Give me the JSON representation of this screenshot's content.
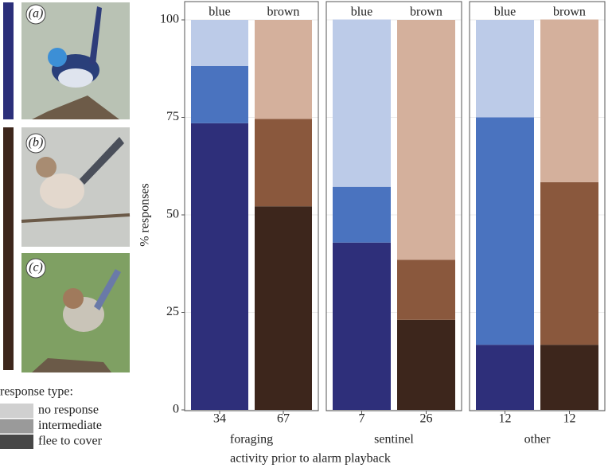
{
  "chart_data": {
    "type": "bar",
    "stacked": true,
    "ylabel": "% responses",
    "xlabel": "activity prior to alarm playback",
    "ylim": [
      0,
      100
    ],
    "yticks": [
      0,
      25,
      50,
      75,
      100
    ],
    "grid": true,
    "legend": {
      "title": "response type:",
      "items": [
        {
          "name": "no response",
          "color": "#d0d0d0"
        },
        {
          "name": "intermediate",
          "color": "#9a9a9a"
        },
        {
          "name": "flee to cover",
          "color": "#474747"
        }
      ]
    },
    "facets": [
      {
        "name": "foraging",
        "bars": [
          {
            "label": "blue",
            "n": 34,
            "values": [
              11.8,
              14.7,
              73.5
            ],
            "colors": [
              "#bccbe8",
              "#4a73bf",
              "#2e2f7a"
            ]
          },
          {
            "label": "brown",
            "n": 67,
            "values": [
              25.4,
              22.4,
              52.2
            ],
            "colors": [
              "#d4b09c",
              "#8a583d",
              "#3d261c"
            ]
          }
        ]
      },
      {
        "name": "sentinel",
        "bars": [
          {
            "label": "blue",
            "n": 7,
            "values": [
              42.9,
              14.3,
              42.9
            ],
            "colors": [
              "#bccbe8",
              "#4a73bf",
              "#2e2f7a"
            ]
          },
          {
            "label": "brown",
            "n": 26,
            "values": [
              61.5,
              15.4,
              23.1
            ],
            "colors": [
              "#d4b09c",
              "#8a583d",
              "#3d261c"
            ]
          }
        ]
      },
      {
        "name": "other",
        "bars": [
          {
            "label": "blue",
            "n": 12,
            "values": [
              25,
              58.3,
              16.7
            ],
            "colors": [
              "#bccbe8",
              "#4a73bf",
              "#2e2f7a"
            ]
          },
          {
            "label": "brown",
            "n": 12,
            "values": [
              41.7,
              41.7,
              16.7
            ],
            "colors": [
              "#d4b09c",
              "#8a583d",
              "#3d261c"
            ]
          }
        ]
      }
    ]
  },
  "photos": [
    {
      "label": "(a)"
    },
    {
      "label": "(b)"
    },
    {
      "label": "(c)"
    }
  ]
}
